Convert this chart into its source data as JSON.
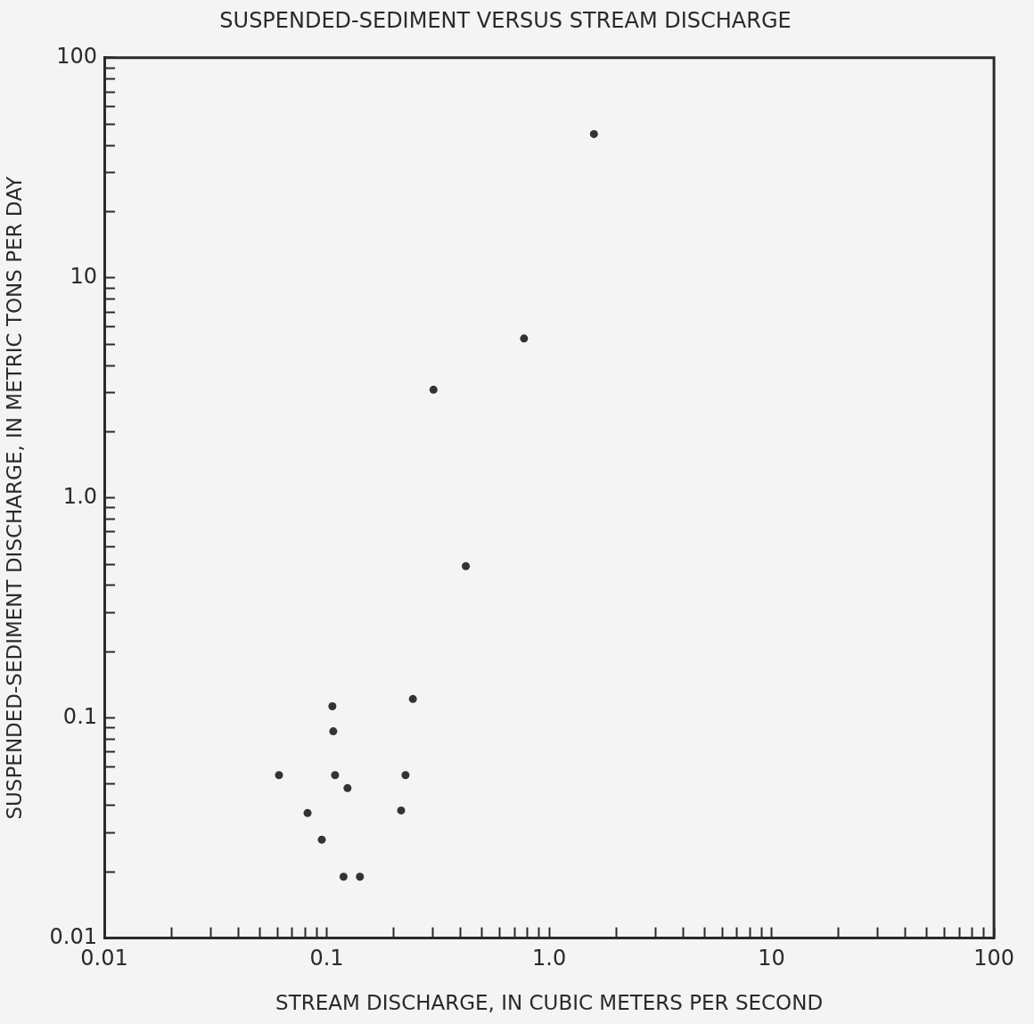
{
  "chart_data": {
    "type": "scatter",
    "title": "SUSPENDED-SEDIMENT VERSUS STREAM DISCHARGE",
    "xlabel": "STREAM DISCHARGE, IN CUBIC METERS PER SECOND",
    "ylabel": "SUSPENDED-SEDIMENT DISCHARGE, IN METRIC TONS PER DAY",
    "log": "xy",
    "grid": false,
    "legend": false,
    "marker": "circle",
    "xlim": [
      0.01,
      100
    ],
    "ylim": [
      0.01,
      100
    ],
    "xticks": [
      {
        "value": 0.01,
        "label": "0.01"
      },
      {
        "value": 0.02,
        "label": null
      },
      {
        "value": 0.03,
        "label": null
      },
      {
        "value": 0.04,
        "label": null
      },
      {
        "value": 0.05,
        "label": null
      },
      {
        "value": 0.06,
        "label": null
      },
      {
        "value": 0.07,
        "label": null
      },
      {
        "value": 0.08,
        "label": null
      },
      {
        "value": 0.09,
        "label": null
      },
      {
        "value": 0.1,
        "label": "0.1"
      },
      {
        "value": 0.2,
        "label": null
      },
      {
        "value": 0.3,
        "label": null
      },
      {
        "value": 0.4,
        "label": null
      },
      {
        "value": 0.5,
        "label": null
      },
      {
        "value": 0.6,
        "label": null
      },
      {
        "value": 0.7,
        "label": null
      },
      {
        "value": 0.8,
        "label": null
      },
      {
        "value": 0.9,
        "label": null
      },
      {
        "value": 1,
        "label": "1.0"
      },
      {
        "value": 2,
        "label": null
      },
      {
        "value": 3,
        "label": null
      },
      {
        "value": 4,
        "label": null
      },
      {
        "value": 5,
        "label": null
      },
      {
        "value": 6,
        "label": null
      },
      {
        "value": 7,
        "label": null
      },
      {
        "value": 8,
        "label": null
      },
      {
        "value": 9,
        "label": null
      },
      {
        "value": 10,
        "label": "10"
      },
      {
        "value": 20,
        "label": null
      },
      {
        "value": 30,
        "label": null
      },
      {
        "value": 40,
        "label": null
      },
      {
        "value": 50,
        "label": null
      },
      {
        "value": 60,
        "label": null
      },
      {
        "value": 70,
        "label": null
      },
      {
        "value": 80,
        "label": null
      },
      {
        "value": 90,
        "label": null
      },
      {
        "value": 100,
        "label": "100"
      }
    ],
    "yticks": [
      {
        "value": 0.01,
        "label": "0.01"
      },
      {
        "value": 0.02,
        "label": null
      },
      {
        "value": 0.03,
        "label": null
      },
      {
        "value": 0.04,
        "label": null
      },
      {
        "value": 0.05,
        "label": null
      },
      {
        "value": 0.06,
        "label": null
      },
      {
        "value": 0.07,
        "label": null
      },
      {
        "value": 0.08,
        "label": null
      },
      {
        "value": 0.09,
        "label": null
      },
      {
        "value": 0.1,
        "label": "0.1"
      },
      {
        "value": 0.2,
        "label": null
      },
      {
        "value": 0.3,
        "label": null
      },
      {
        "value": 0.4,
        "label": null
      },
      {
        "value": 0.5,
        "label": null
      },
      {
        "value": 0.6,
        "label": null
      },
      {
        "value": 0.7,
        "label": null
      },
      {
        "value": 0.8,
        "label": null
      },
      {
        "value": 0.9,
        "label": null
      },
      {
        "value": 1,
        "label": "1.0"
      },
      {
        "value": 2,
        "label": null
      },
      {
        "value": 3,
        "label": null
      },
      {
        "value": 4,
        "label": null
      },
      {
        "value": 5,
        "label": null
      },
      {
        "value": 6,
        "label": null
      },
      {
        "value": 7,
        "label": null
      },
      {
        "value": 8,
        "label": null
      },
      {
        "value": 9,
        "label": null
      },
      {
        "value": 10,
        "label": "10"
      },
      {
        "value": 20,
        "label": null
      },
      {
        "value": 30,
        "label": null
      },
      {
        "value": 40,
        "label": null
      },
      {
        "value": 50,
        "label": null
      },
      {
        "value": 60,
        "label": null
      },
      {
        "value": 70,
        "label": null
      },
      {
        "value": 80,
        "label": null
      },
      {
        "value": 90,
        "label": null
      },
      {
        "value": 100,
        "label": "100"
      }
    ],
    "series": [
      {
        "color": "#333333",
        "x": [
          0.061,
          0.082,
          0.095,
          0.106,
          0.107,
          0.109,
          0.119,
          0.124,
          0.141,
          0.216,
          0.226,
          0.244,
          0.302,
          0.422,
          0.771,
          1.59
        ],
        "values": [
          0.055,
          0.037,
          0.028,
          0.113,
          0.087,
          0.055,
          0.019,
          0.048,
          0.019,
          0.038,
          0.055,
          0.122,
          3.1,
          0.49,
          5.3,
          45
        ]
      }
    ]
  }
}
